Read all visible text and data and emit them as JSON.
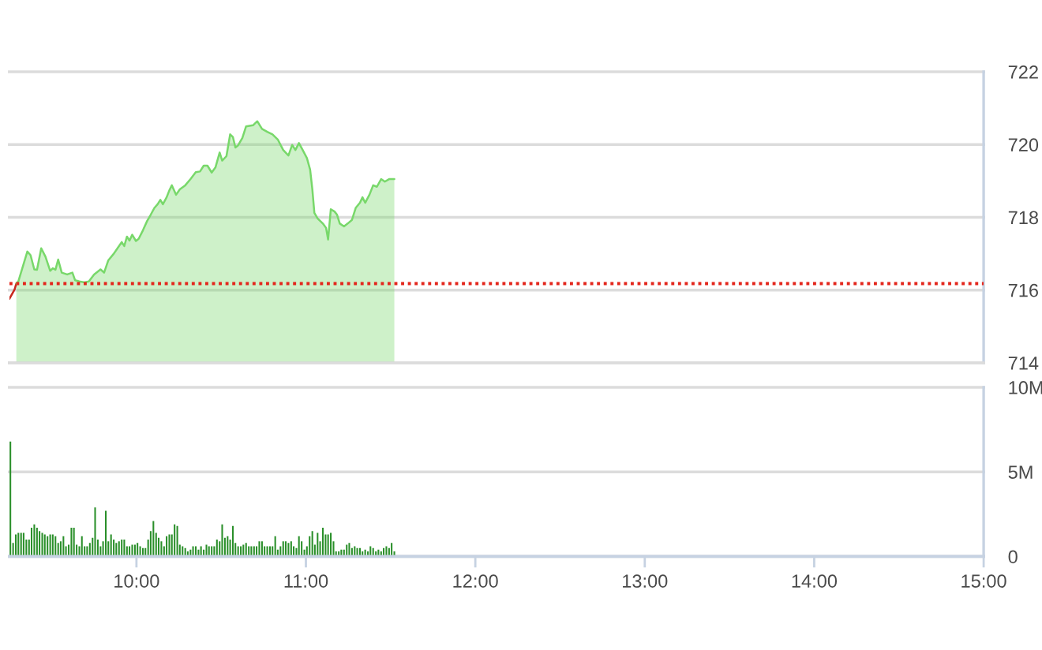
{
  "chart_data": [
    {
      "type": "area",
      "series": [
        {
          "type": "line",
          "color": "#c8281e",
          "x": [
            9.25,
            9.281,
            9.291
          ],
          "values": [
            715.76,
            716.02,
            716.18
          ]
        },
        {
          "type": "area",
          "color": "#78d86a",
          "x": [
            9.291,
            9.303,
            9.356,
            9.375,
            9.397,
            9.413,
            9.438,
            9.463,
            9.491,
            9.506,
            9.522,
            9.538,
            9.559,
            9.591,
            9.622,
            9.638,
            9.663,
            9.694,
            9.719,
            9.75,
            9.788,
            9.809,
            9.834,
            9.866,
            9.888,
            9.913,
            9.928,
            9.944,
            9.959,
            9.975,
            9.997,
            10.013,
            10.038,
            10.063,
            10.084,
            10.106,
            10.125,
            10.141,
            10.156,
            10.178,
            10.194,
            10.209,
            10.234,
            10.256,
            10.288,
            10.319,
            10.35,
            10.375,
            10.397,
            10.419,
            10.444,
            10.466,
            10.491,
            10.506,
            10.531,
            10.553,
            10.569,
            10.584,
            10.6,
            10.625,
            10.647,
            10.688,
            10.713,
            10.741,
            10.772,
            10.803,
            10.834,
            10.866,
            10.897,
            10.919,
            10.938,
            10.959,
            10.981,
            11.006,
            11.025,
            11.038,
            11.05,
            11.069,
            11.1,
            11.119,
            11.131,
            11.147,
            11.169,
            11.184,
            11.2,
            11.225,
            11.247,
            11.272,
            11.294,
            11.319,
            11.334,
            11.35,
            11.375,
            11.397,
            11.419,
            11.444,
            11.466,
            11.491,
            11.522
          ],
          "values": [
            716.18,
            716.24,
            717.06,
            716.96,
            716.57,
            716.56,
            717.15,
            716.92,
            716.53,
            716.6,
            716.56,
            716.84,
            716.48,
            716.43,
            716.48,
            716.27,
            716.24,
            716.21,
            716.24,
            716.43,
            716.57,
            716.48,
            716.82,
            717.0,
            717.15,
            717.32,
            717.21,
            717.47,
            717.36,
            717.52,
            717.35,
            717.41,
            717.64,
            717.9,
            718.07,
            718.26,
            718.36,
            718.48,
            718.36,
            718.55,
            718.74,
            718.88,
            718.62,
            718.77,
            718.88,
            719.05,
            719.24,
            719.26,
            719.42,
            719.42,
            719.23,
            719.37,
            719.78,
            719.56,
            719.68,
            720.28,
            720.21,
            719.92,
            719.98,
            720.18,
            720.5,
            720.53,
            720.64,
            720.43,
            720.35,
            720.28,
            720.14,
            719.85,
            719.7,
            719.99,
            719.85,
            720.04,
            719.85,
            719.63,
            719.31,
            718.77,
            718.12,
            717.97,
            717.83,
            717.71,
            717.39,
            718.22,
            718.16,
            718.07,
            717.83,
            717.75,
            717.83,
            717.93,
            718.26,
            718.4,
            718.55,
            718.4,
            718.62,
            718.88,
            718.84,
            719.05,
            718.98,
            719.05,
            719.05
          ]
        }
      ],
      "xlim": [
        9.25,
        15
      ],
      "ylim": [
        714,
        722
      ],
      "yticks": [
        714,
        716,
        718,
        720,
        722
      ],
      "grid": "y",
      "tick_labels": "y",
      "ref_lines": [
        {
          "axis": "y",
          "value": 716.18,
          "color": "#e3261c",
          "line_style": "dotted"
        }
      ]
    },
    {
      "type": "bar",
      "color": "#2a8f2a",
      "x": [
        9.256,
        9.272,
        9.288,
        9.303,
        9.319,
        9.334,
        9.35,
        9.366,
        9.381,
        9.397,
        9.413,
        9.428,
        9.444,
        9.459,
        9.475,
        9.491,
        9.506,
        9.522,
        9.538,
        9.553,
        9.569,
        9.584,
        9.6,
        9.616,
        9.631,
        9.647,
        9.663,
        9.678,
        9.694,
        9.709,
        9.725,
        9.741,
        9.756,
        9.772,
        9.788,
        9.803,
        9.819,
        9.834,
        9.85,
        9.866,
        9.881,
        9.897,
        9.913,
        9.928,
        9.944,
        9.959,
        9.975,
        9.991,
        10.006,
        10.022,
        10.038,
        10.053,
        10.069,
        10.084,
        10.1,
        10.116,
        10.131,
        10.147,
        10.163,
        10.178,
        10.194,
        10.209,
        10.225,
        10.241,
        10.256,
        10.272,
        10.288,
        10.303,
        10.319,
        10.334,
        10.35,
        10.366,
        10.381,
        10.397,
        10.413,
        10.428,
        10.444,
        10.459,
        10.475,
        10.491,
        10.506,
        10.522,
        10.538,
        10.553,
        10.569,
        10.584,
        10.6,
        10.616,
        10.631,
        10.647,
        10.663,
        10.678,
        10.694,
        10.709,
        10.725,
        10.741,
        10.756,
        10.772,
        10.788,
        10.803,
        10.819,
        10.834,
        10.85,
        10.866,
        10.881,
        10.897,
        10.913,
        10.928,
        10.944,
        10.959,
        10.975,
        10.991,
        11.006,
        11.022,
        11.038,
        11.053,
        11.069,
        11.084,
        11.1,
        11.116,
        11.131,
        11.147,
        11.163,
        11.178,
        11.194,
        11.209,
        11.225,
        11.241,
        11.256,
        11.272,
        11.288,
        11.303,
        11.319,
        11.334,
        11.35,
        11.366,
        11.381,
        11.397,
        11.413,
        11.428,
        11.444,
        11.459,
        11.475,
        11.491,
        11.506,
        11.522
      ],
      "values": [
        6.8,
        0.8,
        1.3,
        1.4,
        1.4,
        1.4,
        1.0,
        1.0,
        1.7,
        1.9,
        1.7,
        1.5,
        1.4,
        1.3,
        1.2,
        1.3,
        1.3,
        1.2,
        0.8,
        0.9,
        1.2,
        0.6,
        0.7,
        1.7,
        1.7,
        0.7,
        0.6,
        1.2,
        0.6,
        0.6,
        0.8,
        1.1,
        2.9,
        1.0,
        0.6,
        0.9,
        2.7,
        0.9,
        1.3,
        1.0,
        0.8,
        0.9,
        1.0,
        1.0,
        0.6,
        0.6,
        0.7,
        0.7,
        0.8,
        0.6,
        0.5,
        0.5,
        1.0,
        1.5,
        2.1,
        1.4,
        1.1,
        0.9,
        0.6,
        1.2,
        1.3,
        1.3,
        1.9,
        1.8,
        0.7,
        0.6,
        0.5,
        0.3,
        0.4,
        0.6,
        0.6,
        0.4,
        0.6,
        0.4,
        0.7,
        0.6,
        0.6,
        0.6,
        1.0,
        0.9,
        1.9,
        1.1,
        1.2,
        1.0,
        1.8,
        0.8,
        0.6,
        0.6,
        0.7,
        0.8,
        0.6,
        0.6,
        0.6,
        0.6,
        0.9,
        0.9,
        0.6,
        0.6,
        0.6,
        0.6,
        1.2,
        0.4,
        0.6,
        0.9,
        0.9,
        0.8,
        0.9,
        0.6,
        0.5,
        1.2,
        0.9,
        0.4,
        0.6,
        1.2,
        1.5,
        0.7,
        1.4,
        0.9,
        1.7,
        1.3,
        1.3,
        1.4,
        0.9,
        0.3,
        0.3,
        0.4,
        0.4,
        0.7,
        0.8,
        0.5,
        0.6,
        0.5,
        0.5,
        0.3,
        0.4,
        0.3,
        0.6,
        0.5,
        0.3,
        0.4,
        0.3,
        0.5,
        0.6,
        0.5,
        0.8,
        0.3
      ],
      "xlim": [
        9.25,
        15
      ],
      "xticks": [
        {
          "value": 10,
          "label": "10:00"
        },
        {
          "value": 11,
          "label": "11:00"
        },
        {
          "value": 12,
          "label": "12:00"
        },
        {
          "value": 13,
          "label": "13:00"
        },
        {
          "value": 14,
          "label": "14:00"
        },
        {
          "value": 15,
          "label": "15:00"
        }
      ],
      "ylim": [
        0,
        10
      ],
      "yticks": [
        0,
        {
          "value": 5,
          "label": "5M"
        },
        {
          "value": 10,
          "label": "10M"
        }
      ],
      "grid": "y"
    }
  ]
}
